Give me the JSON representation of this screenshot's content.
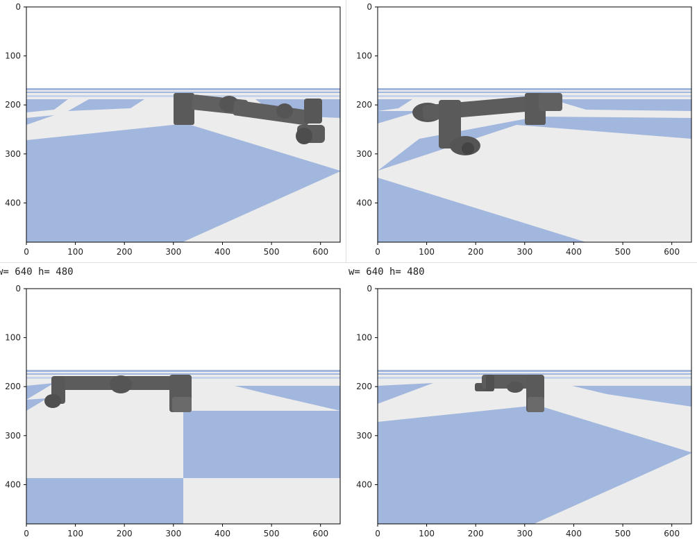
{
  "output_lines": [
    "w= 640 h= 480",
    "w= 640 h= 480"
  ],
  "axes": {
    "x_ticks": [
      "0",
      "100",
      "200",
      "300",
      "400",
      "500",
      "600"
    ],
    "y_ticks": [
      "0",
      "100",
      "200",
      "300",
      "400"
    ],
    "xlim": [
      0,
      640
    ],
    "ylim": [
      480,
      0
    ]
  },
  "image_size": {
    "w": 640,
    "h": 480
  },
  "colors": {
    "floor_blue": "#a2b7dd",
    "floor_white": "#ececec",
    "sky": "#ffffff",
    "robot": "#5a5a5a"
  }
}
